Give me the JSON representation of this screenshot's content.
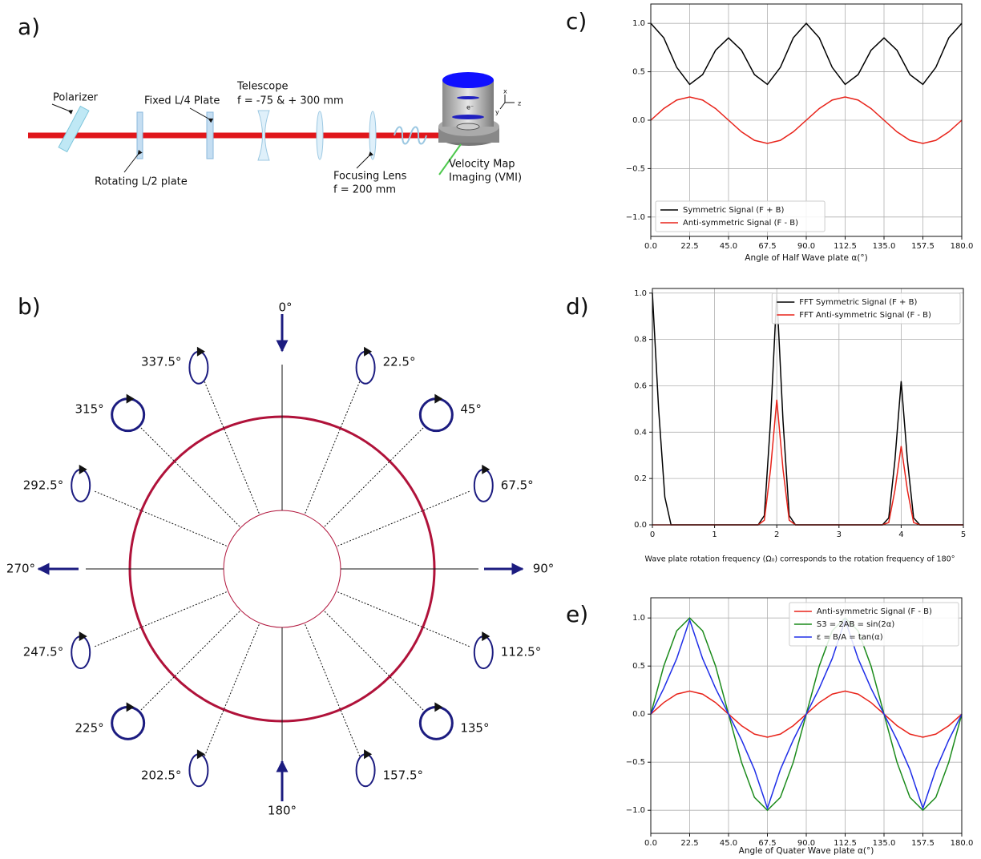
{
  "panel_labels": [
    "a)",
    "b)",
    "c)",
    "d)",
    "e)"
  ],
  "setup": {
    "polarizer": "Polarizer",
    "fixed_plate": "Fixed L/4 Plate",
    "telescope": "Telescope",
    "telescope_focal": "f = -75 & + 300 mm",
    "rotating_plate": "Rotating L/2 plate",
    "focusing_lens": "Focusing Lens",
    "focusing_focal": "f = 200 mm",
    "vmi_line1": "Velocity Map",
    "vmi_line2": "Imaging (VMI)",
    "electron": "e⁻",
    "axes": [
      "x",
      "y",
      "z"
    ]
  },
  "polarization": {
    "angles": [
      "0°",
      "22.5°",
      "45°",
      "67.5°",
      "90°",
      "112.5°",
      "135°",
      "157.5°",
      "180°",
      "202.5°",
      "225°",
      "247.5°",
      "270°",
      "292.5°",
      "315°",
      "337.5°"
    ]
  },
  "chart_data": [
    {
      "type": "line",
      "xlabel": "Angle of Half Wave plate α(°)",
      "x": [
        0,
        7.5,
        15,
        22.5,
        30,
        37.5,
        45,
        52.5,
        60,
        67.5,
        75,
        82.5,
        90,
        97.5,
        105,
        112.5,
        120,
        127.5,
        135,
        142.5,
        150,
        157.5,
        165,
        172.5,
        180
      ],
      "series": [
        {
          "name": "Symmetric Signal (F + B)",
          "color": "#000000",
          "values": [
            1.0,
            0.851,
            0.546,
            0.37,
            0.471,
            0.722,
            0.85,
            0.722,
            0.471,
            0.37,
            0.546,
            0.851,
            1.0,
            0.851,
            0.546,
            0.37,
            0.471,
            0.722,
            0.85,
            0.722,
            0.471,
            0.37,
            0.546,
            0.851,
            1.0
          ]
        },
        {
          "name": "Anti-symmetric Signal (F - B)",
          "color": "#e8231a",
          "values": [
            0,
            0.12,
            0.208,
            0.24,
            0.208,
            0.12,
            0,
            -0.12,
            -0.208,
            -0.24,
            -0.208,
            -0.12,
            0,
            0.12,
            0.208,
            0.24,
            0.208,
            0.12,
            0,
            -0.12,
            -0.208,
            -0.24,
            -0.208,
            -0.12,
            0
          ]
        }
      ],
      "xlim": [
        0,
        180
      ],
      "ylim": [
        -1.2,
        1.2
      ],
      "xticks": [
        {
          "value": 0,
          "label": "0.0"
        },
        22.5,
        {
          "value": 45,
          "label": "45.0"
        },
        67.5,
        {
          "value": 90,
          "label": "90.0"
        },
        112.5,
        {
          "value": 135,
          "label": "135.0"
        },
        157.5,
        {
          "value": 180,
          "label": "180.0"
        }
      ],
      "yticks": [
        {
          "value": -1,
          "label": "−1.0"
        },
        {
          "value": -0.5,
          "label": "−0.5"
        },
        {
          "value": 0,
          "label": "0.0"
        },
        0.5,
        {
          "value": 1,
          "label": "1.0"
        }
      ],
      "grid": true,
      "legend": "lower left"
    },
    {
      "type": "line",
      "xlabel": "Wave plate rotation frequency (Ω₀) corresponds to the rotation frequency of 180°",
      "x": [
        0,
        0.1,
        0.2,
        0.3,
        1.7,
        1.8,
        1.9,
        2.0,
        2.1,
        2.2,
        2.3,
        3.7,
        3.8,
        3.9,
        4.0,
        4.1,
        4.2,
        4.3,
        5.0
      ],
      "series": [
        {
          "name": "FFT Symmetric Signal (F + B)",
          "color": "#000000",
          "values": [
            1.0,
            0.5,
            0.12,
            0,
            0,
            0.04,
            0.45,
            1.0,
            0.45,
            0.04,
            0,
            0,
            0.03,
            0.28,
            0.62,
            0.28,
            0.03,
            0,
            0
          ]
        },
        {
          "name": "FFT Anti-symmetric Signal (F - B)",
          "color": "#e8231a",
          "values": [
            0,
            0,
            0,
            0,
            0,
            0.02,
            0.24,
            0.54,
            0.24,
            0.02,
            0,
            0,
            0.01,
            0.15,
            0.34,
            0.15,
            0.01,
            0,
            0
          ]
        }
      ],
      "xlim": [
        0,
        5
      ],
      "ylim": [
        0,
        1.02
      ],
      "xticks": [
        0,
        1,
        2,
        3,
        4,
        5
      ],
      "yticks": [
        {
          "value": 0,
          "label": "0.0"
        },
        0.2,
        0.4,
        0.6,
        0.8,
        {
          "value": 1,
          "label": "1.0"
        }
      ],
      "grid": true,
      "legend": "upper right"
    },
    {
      "type": "line",
      "xlabel": "Angle of Quater Wave plate α(°)",
      "x": [
        0,
        7.5,
        15,
        22.5,
        30,
        37.5,
        45,
        52.5,
        60,
        67.5,
        75,
        82.5,
        90,
        97.5,
        105,
        112.5,
        120,
        127.5,
        135,
        142.5,
        150,
        157.5,
        165,
        172.5,
        180
      ],
      "series": [
        {
          "name": "Anti-symmetric Signal (F - B)",
          "color": "#e8231a",
          "values": [
            0,
            0.12,
            0.208,
            0.24,
            0.208,
            0.12,
            0,
            -0.12,
            -0.208,
            -0.24,
            -0.208,
            -0.12,
            0,
            0.12,
            0.208,
            0.24,
            0.208,
            0.12,
            0,
            -0.12,
            -0.208,
            -0.24,
            -0.208,
            -0.12,
            0
          ]
        },
        {
          "name": "S3 = 2AB = sin(2α)",
          "color": "#1a8a1a",
          "values": [
            0,
            0.5,
            0.866,
            1,
            0.866,
            0.5,
            0,
            -0.5,
            -0.866,
            -1,
            -0.866,
            -0.5,
            0,
            0.5,
            0.866,
            1,
            0.866,
            0.5,
            0,
            -0.5,
            -0.866,
            -1,
            -0.866,
            -0.5,
            0
          ]
        },
        {
          "name": "ε = B/A = tan(α)",
          "color": "#1f2ee8",
          "values": [
            0,
            0.268,
            0.577,
            0.98,
            0.577,
            0.268,
            0,
            -0.268,
            -0.577,
            -0.98,
            -0.577,
            -0.268,
            0,
            0.268,
            0.577,
            0.98,
            0.577,
            0.268,
            0,
            -0.268,
            -0.577,
            -0.98,
            -0.577,
            -0.268,
            0
          ]
        }
      ],
      "xlim": [
        0,
        180
      ],
      "ylim": [
        -1.24,
        1.21
      ],
      "xticks": [
        {
          "value": 0,
          "label": "0.0"
        },
        22.5,
        {
          "value": 45,
          "label": "45.0"
        },
        67.5,
        {
          "value": 90,
          "label": "90.0"
        },
        112.5,
        {
          "value": 135,
          "label": "135.0"
        },
        157.5,
        {
          "value": 180,
          "label": "180.0"
        }
      ],
      "yticks": [
        {
          "value": -1,
          "label": "−1.0"
        },
        {
          "value": -0.5,
          "label": "−0.5"
        },
        {
          "value": 0,
          "label": "0.0"
        },
        0.5,
        {
          "value": 1,
          "label": "1.0"
        }
      ],
      "grid": true,
      "legend": "upper right"
    }
  ]
}
